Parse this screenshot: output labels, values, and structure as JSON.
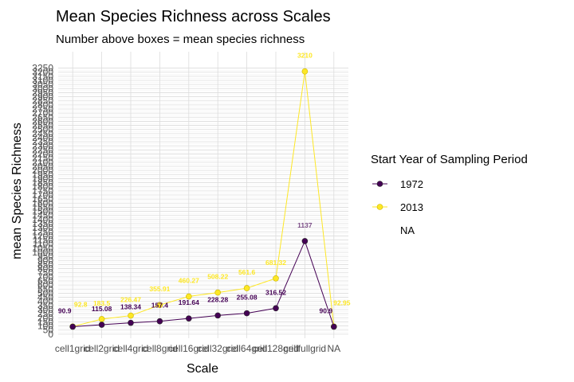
{
  "chart_data": {
    "type": "line",
    "title": "Mean Species Richness across Scales",
    "subtitle": "Number above boxes = mean species richness",
    "xlabel": "Scale",
    "ylabel": "mean Species Richness",
    "categories": [
      "cell1grid",
      "cell2grid",
      "cell4grid",
      "cell8grid",
      "cell16grid",
      "cell32grid",
      "cell64grid",
      "cell128grid",
      "cellfullgrid",
      "NA"
    ],
    "yticks": [
      0,
      50,
      100,
      150,
      200,
      250,
      300,
      350,
      400,
      450,
      500,
      550,
      600,
      650,
      700,
      750,
      800,
      850,
      900,
      950,
      1000,
      1050,
      1100,
      1150,
      1200,
      1250,
      1300,
      1350,
      1400,
      1450,
      1500,
      1550,
      1600,
      1650,
      1700,
      1750,
      1800,
      1850,
      1900,
      1950,
      2000,
      2050,
      2100,
      2150,
      2200,
      2250,
      2300,
      2350,
      2400,
      2450,
      2500,
      2550,
      2600,
      2650,
      2700,
      2750,
      2800,
      2850,
      2900,
      2950,
      3000,
      3050,
      3100,
      3150,
      3200,
      3250
    ],
    "ylim": [
      -50,
      3450
    ],
    "grid": true,
    "legend": {
      "title": "Start Year of Sampling Period",
      "position": "right",
      "entries": [
        "1972",
        "2013",
        "NA"
      ]
    },
    "series": [
      {
        "name": "1972",
        "color": "#440154",
        "values": [
          90.9,
          115.08,
          138.34,
          157.4,
          191.64,
          228.28,
          255.08,
          316.52,
          1137,
          90.9
        ],
        "labels": [
          "90.9",
          "115.08",
          "138.34",
          "157.4",
          "191.64",
          "228.28",
          "255.08",
          "316.52",
          "1137",
          "90.9"
        ]
      },
      {
        "name": "2013",
        "color": "#fde725",
        "values": [
          92.8,
          183.5,
          226.47,
          355.91,
          460.27,
          508.22,
          561.6,
          681.32,
          3210,
          92.95
        ],
        "labels": [
          "92.8",
          "183.5",
          "226.47",
          "355.91",
          "460.27",
          "508.22",
          "561.6",
          "681.32",
          "3210",
          "92.95"
        ]
      }
    ]
  }
}
